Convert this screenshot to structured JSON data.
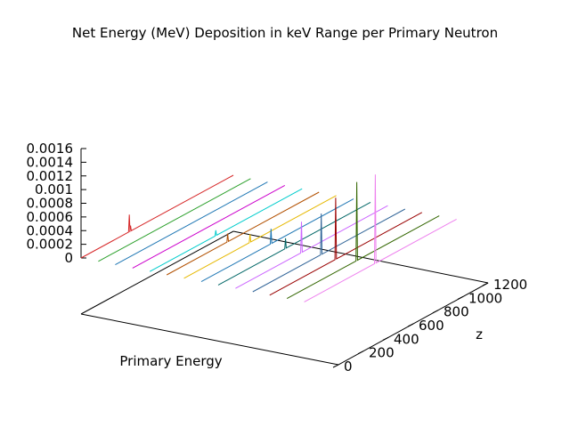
{
  "chart_data": {
    "type": "line",
    "title": "Net Energy (MeV) Deposition in keV Range per Primary Neutron",
    "xlabel": "Primary Energy",
    "ylabel": "",
    "zlabel": "z",
    "xlim": [
      0,
      1
    ],
    "ylim": [
      0,
      1200
    ],
    "zlim": [
      0,
      0.0016
    ],
    "z_ticks": [
      "0",
      "0.0002",
      "0.0004",
      "0.0006",
      "0.0008",
      "0.001",
      "0.0012",
      "0.0014",
      "0.0016"
    ],
    "y_ticks": [
      "0",
      "200",
      "400",
      "600",
      "800",
      "1000",
      "1200"
    ],
    "grid": false,
    "legend": "none",
    "series": [
      {
        "x": 0.0,
        "color": "#d62728",
        "peaks": [
          {
            "y": 380,
            "z": 0.00025
          },
          {
            "y": 390,
            "z": 8e-05
          }
        ]
      },
      {
        "x": 0.067,
        "color": "#2ca02c",
        "peaks": []
      },
      {
        "x": 0.133,
        "color": "#1f77b4",
        "peaks": []
      },
      {
        "x": 0.2,
        "color": "#cc00cc",
        "peaks": []
      },
      {
        "x": 0.267,
        "color": "#00cccc",
        "peaks": [
          {
            "y": 520,
            "z": 8e-05
          }
        ]
      },
      {
        "x": 0.333,
        "color": "#b25000",
        "peaks": [
          {
            "y": 480,
            "z": 0.00012
          }
        ]
      },
      {
        "x": 0.4,
        "color": "#e6b800",
        "peaks": [
          {
            "y": 520,
            "z": 0.00012
          }
        ]
      },
      {
        "x": 0.467,
        "color": "#1f77b4",
        "peaks": [
          {
            "y": 550,
            "z": 0.00022
          }
        ]
      },
      {
        "x": 0.533,
        "color": "#006666",
        "peaks": [
          {
            "y": 530,
            "z": 0.00015
          }
        ]
      },
      {
        "x": 0.6,
        "color": "#cc66ff",
        "peaks": [
          {
            "y": 520,
            "z": 0.00045
          }
        ]
      },
      {
        "x": 0.667,
        "color": "#336699",
        "peaks": [
          {
            "y": 540,
            "z": 0.0006
          }
        ]
      },
      {
        "x": 0.733,
        "color": "#990000",
        "peaks": [
          {
            "y": 520,
            "z": 0.0009
          }
        ]
      },
      {
        "x": 0.8,
        "color": "#336600",
        "peaks": [
          {
            "y": 550,
            "z": 0.00115
          }
        ]
      },
      {
        "x": 0.867,
        "color": "#ee82ee",
        "peaks": [
          {
            "y": 560,
            "z": 0.0013
          }
        ]
      }
    ]
  }
}
